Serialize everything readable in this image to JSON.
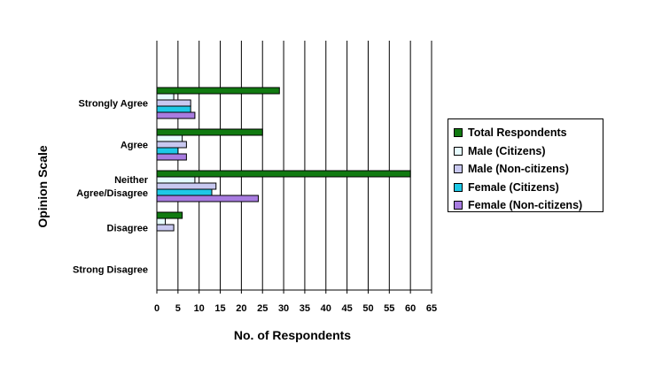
{
  "chart_data": {
    "type": "bar",
    "orientation": "horizontal",
    "xlabel": "No. of Respondents",
    "ylabel": "Opinion Scale",
    "xlim": [
      0,
      65
    ],
    "xticks": [
      "0",
      "5",
      "10",
      "15",
      "20",
      "25",
      "30",
      "35",
      "40",
      "45",
      "50",
      "55",
      "60",
      "65"
    ],
    "xtick_values": [
      0,
      5,
      10,
      15,
      20,
      25,
      30,
      35,
      40,
      45,
      50,
      55,
      60,
      65
    ],
    "grid": "vertical",
    "legend_position": "right",
    "categories": [
      {
        "label_lines": [
          "Strongly Agree"
        ]
      },
      {
        "label_lines": [
          "Agree"
        ]
      },
      {
        "label_lines": [
          "Neither",
          "Agree/Disagree"
        ]
      },
      {
        "label_lines": [
          "Disagree"
        ]
      },
      {
        "label_lines": [
          "Strong Disagree"
        ]
      }
    ],
    "series": [
      {
        "name": "Total Respondents",
        "color": "#117a11",
        "values": [
          29,
          25,
          60,
          6,
          0
        ]
      },
      {
        "name": "Male (Citizens)",
        "color": "#e6fbff",
        "values": [
          4,
          6,
          9,
          2,
          0
        ]
      },
      {
        "name": "Male (Non-citizens)",
        "color": "#c8c8f0",
        "values": [
          8,
          7,
          14,
          4,
          0
        ]
      },
      {
        "name": "Female (Citizens)",
        "color": "#1ec8e6",
        "values": [
          8,
          5,
          13,
          0,
          0
        ]
      },
      {
        "name": "Female (Non-citizens)",
        "color": "#a87ce0",
        "values": [
          9,
          7,
          24,
          0,
          0
        ]
      }
    ]
  }
}
